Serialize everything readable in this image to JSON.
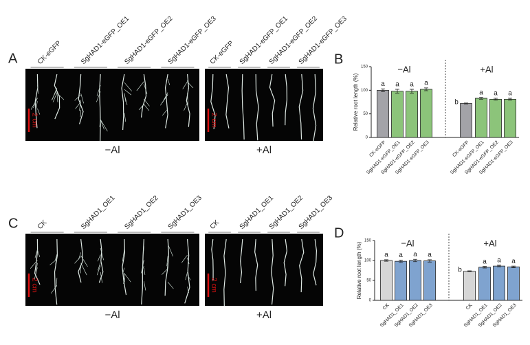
{
  "panels": [
    {
      "letter": "A",
      "images": [
        {
          "labels": [
            "CK-eGFP",
            "SgHAD1-eGFP_OE1",
            "SgHAD1-eGFP_OE2",
            "SgHAD1-eGFP_OE3"
          ],
          "scale": "2 cm",
          "condition": "−Al"
        },
        {
          "labels": [
            "CK-eGFP",
            "SgHAD1-eGFP_OE1",
            "SgHAD1-eGFP_OE2",
            "SgHAD1-eGFP_OE3"
          ],
          "scale": "2 cm",
          "condition": "+Al"
        }
      ]
    },
    {
      "letter": "C",
      "images": [
        {
          "labels": [
            "CK",
            "SgHAD1_OE1",
            "SgHAD1_OE2",
            "SgHAD1_OE3"
          ],
          "scale": "2 cm",
          "condition": "−Al"
        },
        {
          "labels": [
            "CK",
            "SgHAD1_OE1",
            "SgHAD1_OE2",
            "SgHAD1_OE3"
          ],
          "scale": "2 cm",
          "condition": "+Al"
        }
      ]
    }
  ],
  "chart_data": [
    {
      "type": "bar",
      "letter": "B",
      "ylabel": "Relative root length (%)",
      "groups": [
        "−Al",
        "+Al"
      ],
      "categories": [
        "CK-eGFP",
        "SgHAD1-eGFP_OE1",
        "SgHAD1-eGFP_OE2",
        "SgHAD1-eGFP_OE3",
        "CK-eGFP",
        "SgHAD1-eGFP_OE1",
        "SgHAD1-eGFP_OE2",
        "SgHAD1-eGFP_OE3"
      ],
      "values": [
        100,
        98,
        98,
        102,
        72,
        83,
        81,
        81
      ],
      "errors": [
        3,
        4,
        4,
        3,
        1,
        2,
        2,
        2
      ],
      "annotations": [
        "a",
        "a",
        "a",
        "a",
        "b",
        "a",
        "a",
        "a"
      ],
      "colors": [
        "#a3a3a8",
        "#8cc47a",
        "#8cc47a",
        "#8cc47a",
        "#a3a3a8",
        "#8cc47a",
        "#8cc47a",
        "#8cc47a"
      ],
      "ylim": [
        0,
        150
      ],
      "yticks": [
        0,
        50,
        100,
        150
      ]
    },
    {
      "type": "bar",
      "letter": "D",
      "ylabel": "Relative root length (%)",
      "groups": [
        "−Al",
        "+Al"
      ],
      "categories": [
        "CK",
        "SgHAD1_OE1",
        "SgHAD1_OE2",
        "SgHAD1_OE3",
        "CK",
        "SgHAD1_OE1",
        "SgHAD1_OE2",
        "SgHAD1_OE3"
      ],
      "values": [
        100,
        98,
        100,
        99,
        73,
        83,
        86,
        84
      ],
      "errors": [
        2,
        3,
        3,
        3,
        1,
        2,
        2,
        2
      ],
      "annotations": [
        "a",
        "a",
        "a",
        "a",
        "b",
        "a",
        "a",
        "a"
      ],
      "colors": [
        "#d6d6d6",
        "#7fa3cf",
        "#7fa3cf",
        "#7fa3cf",
        "#d6d6d6",
        "#7fa3cf",
        "#7fa3cf",
        "#7fa3cf"
      ],
      "ylim": [
        0,
        150
      ],
      "yticks": [
        0,
        50,
        100,
        150
      ]
    }
  ]
}
